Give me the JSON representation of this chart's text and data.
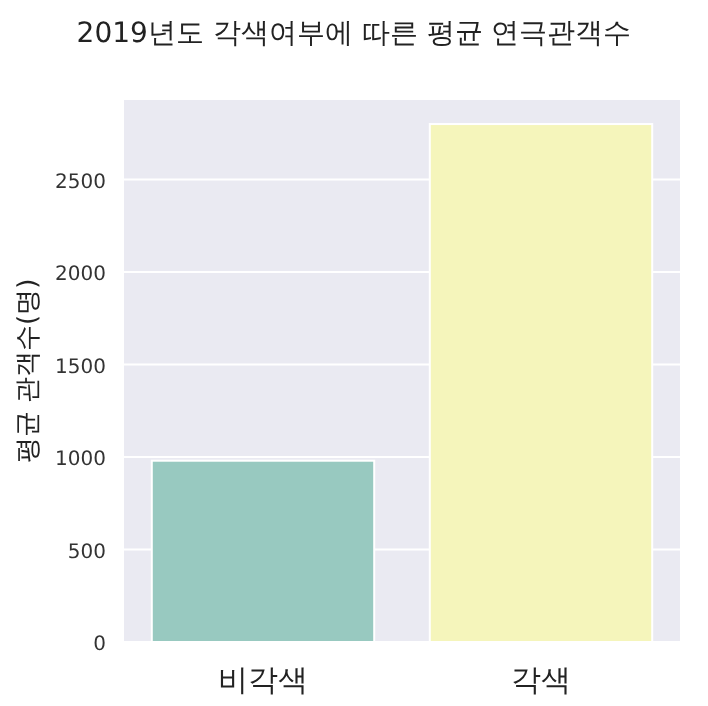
{
  "chart_data": {
    "type": "bar",
    "title": "2019년도 각색여부에 따른 평균 연극관객수",
    "ylabel": "평균 관객수(명)",
    "categories": [
      "비각색",
      "각색"
    ],
    "values": [
      980,
      2800
    ],
    "colors": [
      "#98c9c0",
      "#f5f5bb"
    ],
    "ylim": [
      0,
      2930
    ],
    "yticks": [
      0,
      500,
      1000,
      1500,
      2000,
      2500
    ],
    "grid": "y"
  }
}
